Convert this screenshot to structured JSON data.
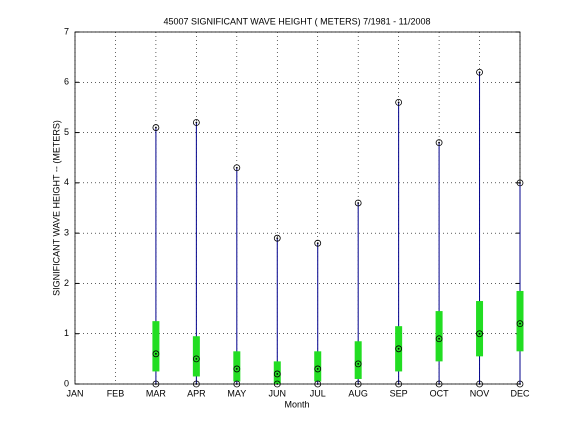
{
  "chart_data": {
    "type": "box",
    "title": "45007  SIGNIFICANT WAVE HEIGHT ( METERS) 7/1981 - 11/2008",
    "x_label": "Month",
    "y_label": "SIGNIFICANT WAVE HEIGHT -- (METERS)",
    "categories": [
      "JAN",
      "FEB",
      "MAR",
      "APR",
      "MAY",
      "JUN",
      "JUL",
      "AUG",
      "SEP",
      "OCT",
      "NOV",
      "DEC"
    ],
    "min": [
      null,
      null,
      0,
      0,
      0,
      0,
      0,
      0,
      0,
      0,
      0,
      0
    ],
    "q1": [
      null,
      null,
      0.25,
      0.15,
      0.05,
      0,
      0.05,
      0.1,
      0.25,
      0.45,
      0.55,
      0.65
    ],
    "median": [
      null,
      null,
      0.6,
      0.5,
      0.3,
      0.2,
      0.3,
      0.4,
      0.7,
      0.9,
      1.0,
      1.2
    ],
    "q3": [
      null,
      null,
      1.25,
      0.95,
      0.65,
      0.45,
      0.65,
      0.85,
      1.15,
      1.45,
      1.65,
      1.85
    ],
    "max": [
      null,
      null,
      5.1,
      5.2,
      4.3,
      2.9,
      2.8,
      3.6,
      5.6,
      4.8,
      6.2,
      4.0
    ],
    "whisker_color": "#00008b",
    "box_color": "#22dd22",
    "marker_color": "#000000",
    "ylim": [
      0,
      7
    ],
    "yticks": [
      0,
      1,
      2,
      3,
      4,
      5,
      6,
      7
    ],
    "grid": true
  }
}
